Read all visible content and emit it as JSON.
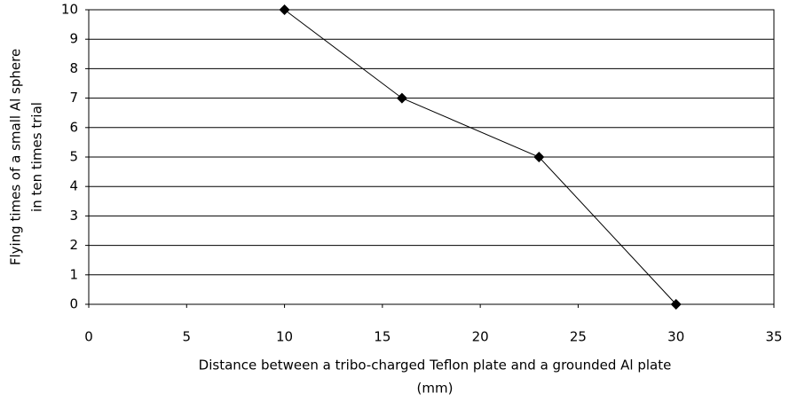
{
  "chart_data": {
    "type": "line",
    "xlabel": [
      "Distance between a tribo-charged Teflon plate and a grounded Al plate",
      "(mm)"
    ],
    "ylabel": [
      "Flying times of a small Al sphere",
      "in ten times trial"
    ],
    "series": [
      {
        "color": "#000000",
        "x": [
          10,
          16,
          23,
          30
        ],
        "values": [
          10,
          7,
          5,
          0
        ]
      }
    ],
    "xlim": [
      0,
      35
    ],
    "xticks": [
      0,
      5,
      10,
      15,
      20,
      25,
      30,
      35
    ],
    "ylim": [
      0,
      10
    ],
    "yticks": [
      0,
      1,
      2,
      3,
      4,
      5,
      6,
      7,
      8,
      9,
      10
    ],
    "grid": true
  }
}
